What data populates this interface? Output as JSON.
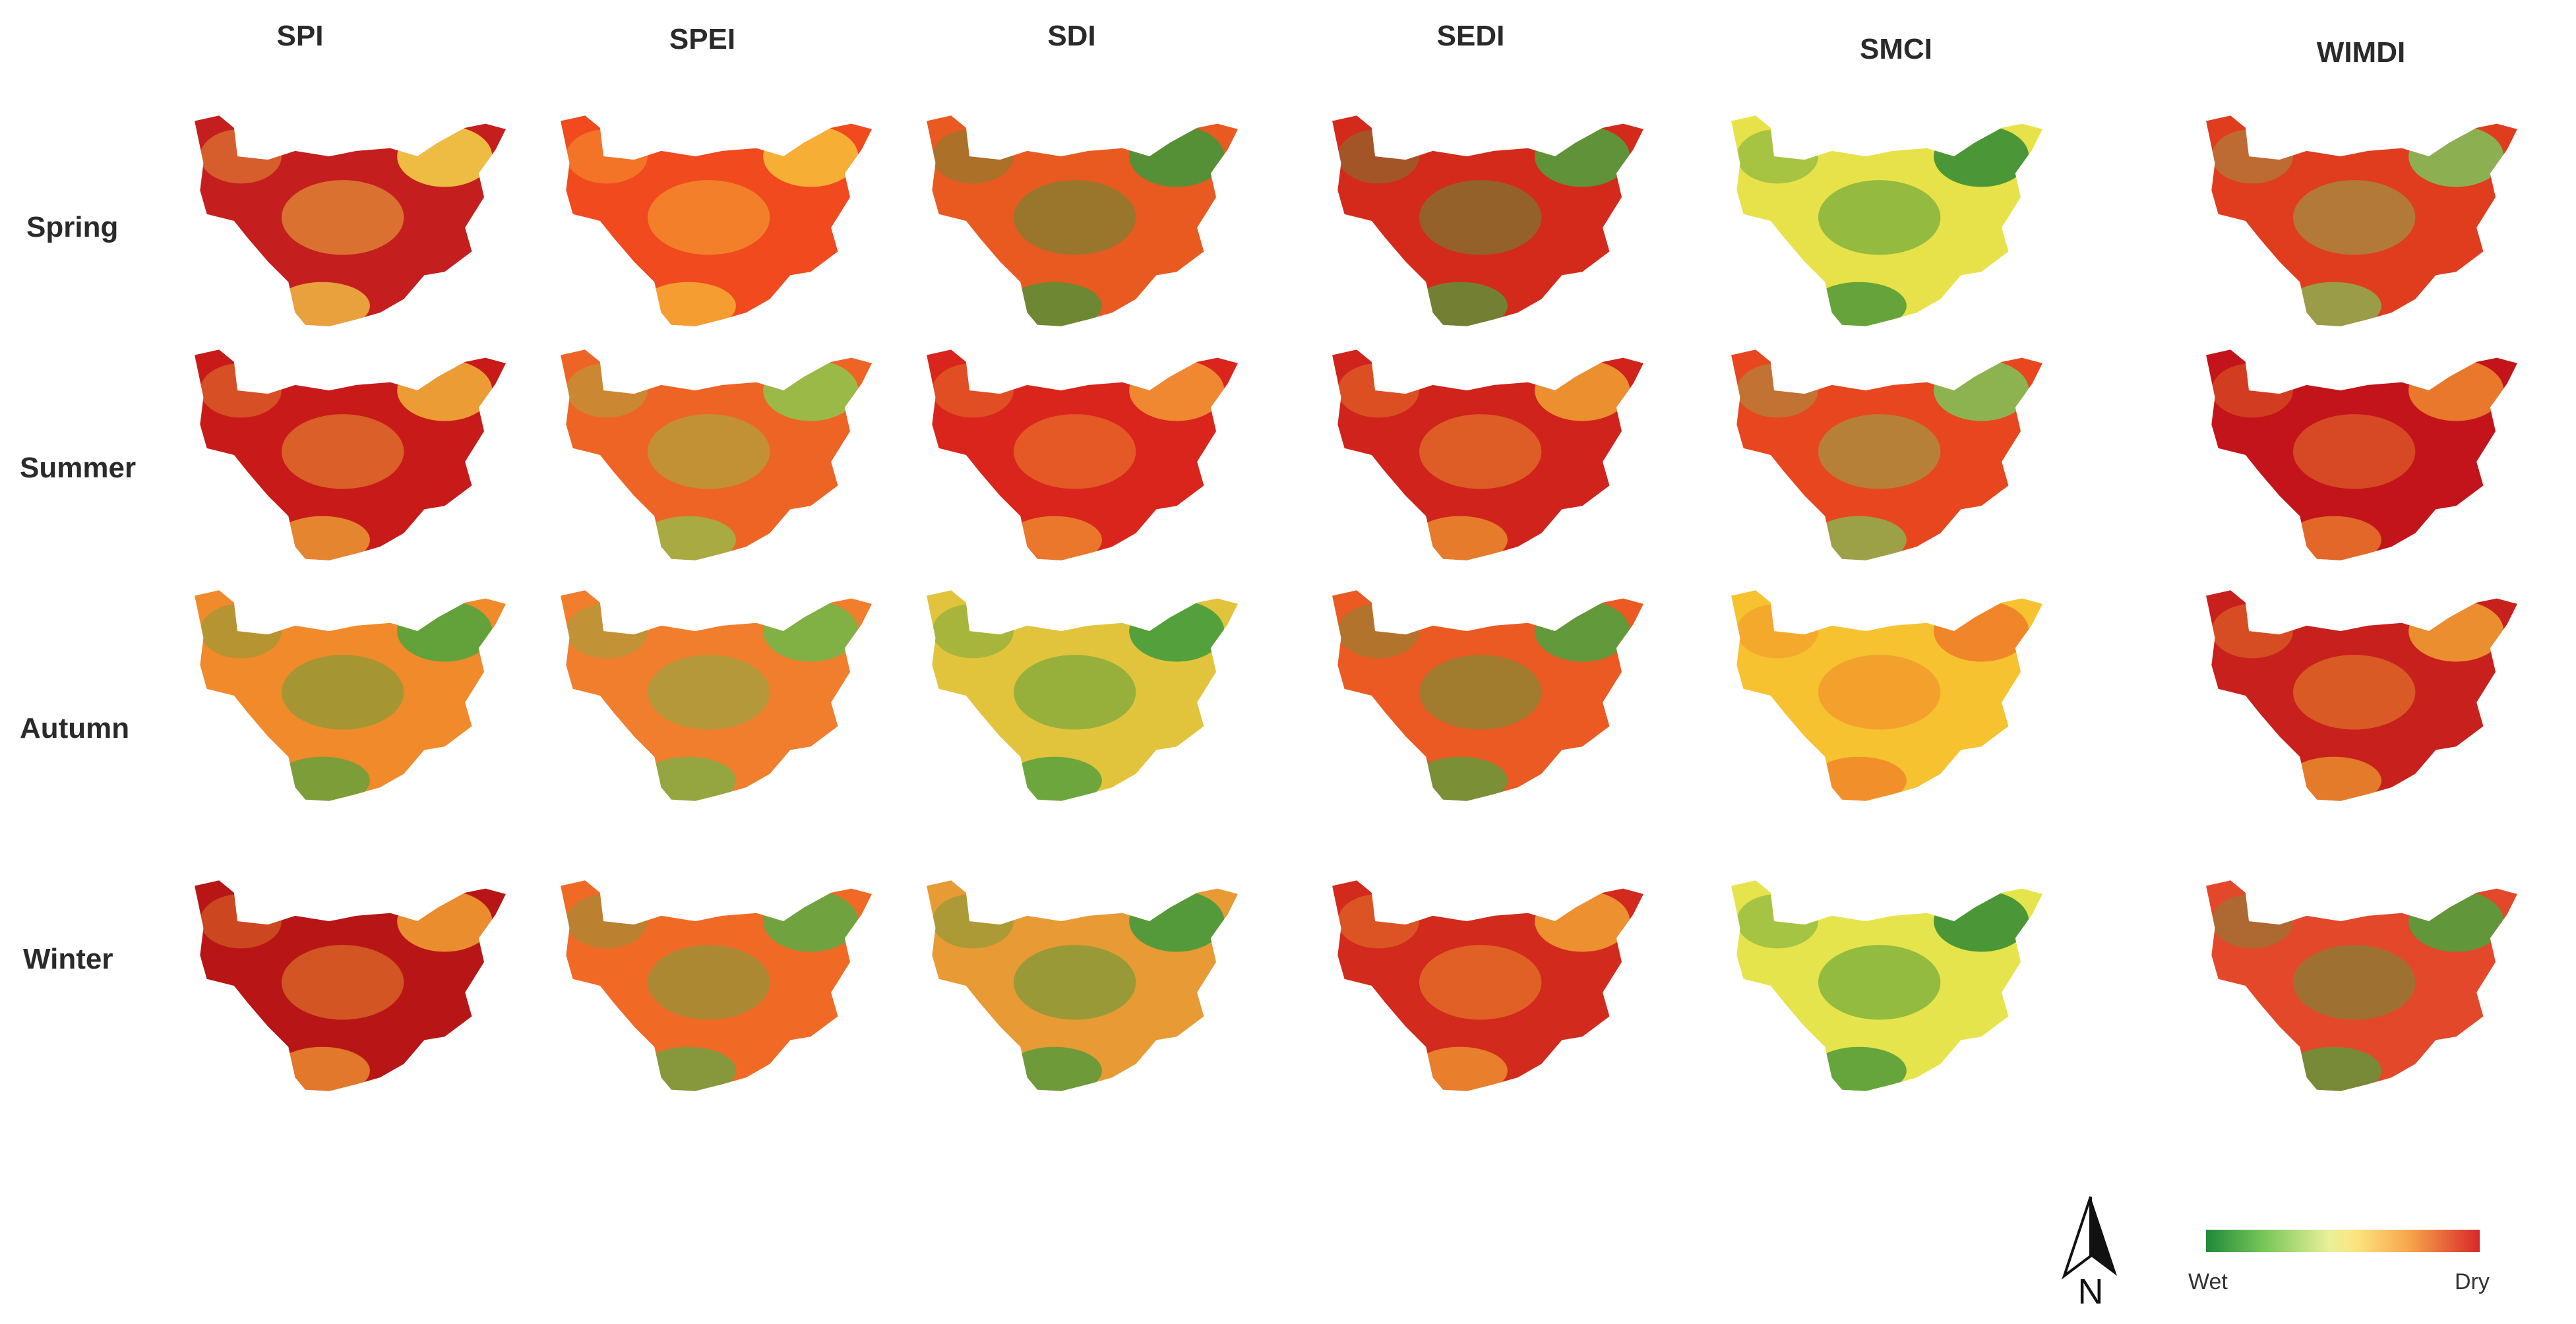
{
  "columns": [
    "SPI",
    "SPEI",
    "SDI",
    "SEDI",
    "SMCI",
    "WIMDI"
  ],
  "rows": [
    "Spring",
    "Summer",
    "Autumn",
    "Winter"
  ],
  "maps": [
    [
      "#c51e1e",
      "#f04a1e",
      "#e85a20",
      "#d42a1c",
      "#e8e24a",
      "#e03c1e"
    ],
    [
      "#c91a1a",
      "#ee6424",
      "#d9251c",
      "#cf231c",
      "#e8461e",
      "#c2141a"
    ],
    [
      "#f08a2a",
      "#f07e2c",
      "#e2c43c",
      "#ea5a22",
      "#f6c230",
      "#c8201c"
    ],
    [
      "#b81616",
      "#f06a26",
      "#e89a34",
      "#d22a1c",
      "#e6e44c",
      "#e4482a"
    ]
  ],
  "highlights": [
    [
      "#f6d84a",
      "#f8c03a",
      "#3b9a3c",
      "#4aa53e",
      "#2f8a34",
      "#7cc45a"
    ],
    [
      "#f2b43a",
      "#8cc84e",
      "#f29a34",
      "#f0a232",
      "#7cc75a",
      "#f08a30"
    ],
    [
      "#4aa53e",
      "#6db84a",
      "#3b9a3c",
      "#4aa53e",
      "#f07a28",
      "#f0a232"
    ],
    [
      "#f2a234",
      "#59ad44",
      "#3b9a3c",
      "#f2a234",
      "#2f8a34",
      "#4aa53e"
    ]
  ],
  "legend": {
    "low_label": "Wet",
    "high_label": "Dry"
  },
  "north_label": "N"
}
